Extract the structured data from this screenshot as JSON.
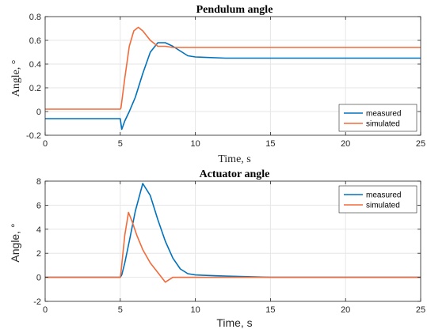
{
  "colors": {
    "measured": "#0072BD",
    "simulated": "#F26B3A",
    "grid": "#e6e6e6",
    "axis": "#262626"
  },
  "chart_data": [
    {
      "type": "line",
      "title": "Pendulum angle",
      "xlabel": "Time, s",
      "ylabel": "Angle, °",
      "xlim": [
        0,
        25
      ],
      "ylim": [
        -0.2,
        0.8
      ],
      "xticks": [
        0,
        5,
        10,
        15,
        20,
        25
      ],
      "xtick_labels": [
        "0",
        "5",
        "10",
        "15",
        "20",
        "25"
      ],
      "yticks": [
        -0.2,
        0,
        0.2,
        0.4,
        0.6,
        0.8
      ],
      "ytick_labels": [
        "-0.2",
        "0",
        "0.2",
        "0.4",
        "0.6",
        "0.8"
      ],
      "grid": true,
      "legend": "bottom-right",
      "series": [
        {
          "name": "measured",
          "color": "#0072BD",
          "x": [
            0,
            2,
            4,
            5,
            5.1,
            5.3,
            5.6,
            6.0,
            6.5,
            7.0,
            7.5,
            8.0,
            8.5,
            9.0,
            9.5,
            10,
            12,
            15,
            18,
            20,
            22,
            25
          ],
          "y": [
            -0.06,
            -0.06,
            -0.06,
            -0.06,
            -0.15,
            -0.08,
            0.0,
            0.12,
            0.32,
            0.5,
            0.58,
            0.58,
            0.55,
            0.51,
            0.47,
            0.46,
            0.45,
            0.45,
            0.45,
            0.45,
            0.45,
            0.45
          ]
        },
        {
          "name": "simulated",
          "color": "#F26B3A",
          "x": [
            0,
            2,
            4,
            5,
            5.05,
            5.3,
            5.6,
            5.9,
            6.2,
            6.5,
            7.0,
            7.5,
            8.0,
            8.5,
            9.0,
            10,
            12,
            15,
            18,
            20,
            22,
            25
          ],
          "y": [
            0.02,
            0.02,
            0.02,
            0.02,
            0.03,
            0.28,
            0.55,
            0.68,
            0.71,
            0.68,
            0.6,
            0.55,
            0.55,
            0.54,
            0.54,
            0.54,
            0.54,
            0.54,
            0.54,
            0.54,
            0.54,
            0.54
          ]
        }
      ]
    },
    {
      "type": "line",
      "title": "Actuator angle",
      "xlabel": "Time, s",
      "ylabel": "Angle, °",
      "xlim": [
        0,
        25
      ],
      "ylim": [
        -2,
        8
      ],
      "xticks": [
        0,
        5,
        10,
        15,
        20,
        25
      ],
      "xtick_labels": [
        "0",
        "5",
        "10",
        "15",
        "20",
        "25"
      ],
      "yticks": [
        -2,
        0,
        2,
        4,
        6,
        8
      ],
      "ytick_labels": [
        "-2",
        "0",
        "2",
        "4",
        "6",
        "8"
      ],
      "grid": true,
      "legend": "top-right",
      "series": [
        {
          "name": "measured",
          "color": "#0072BD",
          "x": [
            0,
            2,
            4,
            5,
            5.1,
            5.3,
            5.6,
            6.0,
            6.5,
            7.0,
            7.5,
            8.0,
            8.5,
            9.0,
            9.5,
            10,
            12,
            15,
            18,
            20,
            22,
            25
          ],
          "y": [
            0,
            0,
            0,
            0,
            0.2,
            1.2,
            3.0,
            5.5,
            7.8,
            6.8,
            4.8,
            3.0,
            1.6,
            0.7,
            0.3,
            0.2,
            0.1,
            0,
            0,
            0,
            0,
            0
          ]
        },
        {
          "name": "simulated",
          "color": "#F26B3A",
          "x": [
            0,
            2,
            4,
            5,
            5.05,
            5.3,
            5.55,
            5.8,
            6.1,
            6.5,
            7.0,
            7.5,
            8.0,
            8.5,
            9.0,
            10,
            12,
            15,
            18,
            20,
            22,
            25
          ],
          "y": [
            0,
            0,
            0,
            0,
            0.4,
            3.5,
            5.4,
            4.6,
            3.5,
            2.3,
            1.2,
            0.4,
            -0.4,
            0,
            0,
            0,
            0,
            0,
            0,
            0,
            0,
            0
          ]
        }
      ]
    }
  ]
}
